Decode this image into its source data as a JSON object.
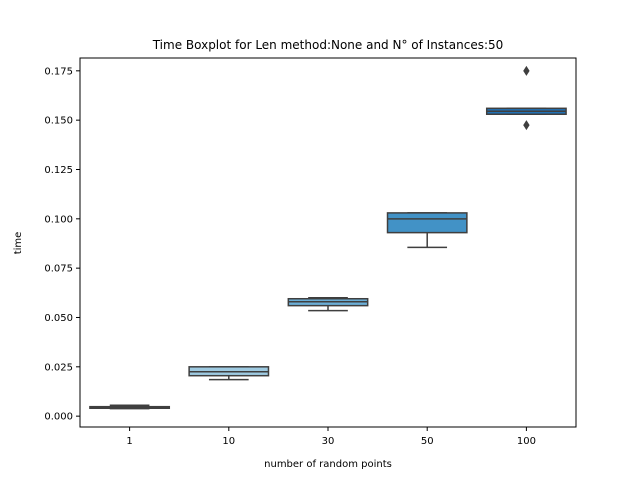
{
  "chart_data": {
    "type": "boxplot",
    "title": "Time Boxplot for Len method:None and N° of Instances:50",
    "xlabel": "number of random points",
    "ylabel": "time",
    "ylim": [
      -0.0055,
      0.1815
    ],
    "yticks": [
      "0.000",
      "0.025",
      "0.050",
      "0.075",
      "0.100",
      "0.125",
      "0.150",
      "0.175"
    ],
    "ytick_values": [
      0.0,
      0.025,
      0.05,
      0.075,
      0.1,
      0.125,
      0.15,
      0.175
    ],
    "categories": [
      "1",
      "10",
      "30",
      "50",
      "100"
    ],
    "boxes": [
      {
        "category": "1",
        "whisker_low": 0.0038,
        "q1": 0.004,
        "median": 0.0045,
        "q3": 0.0048,
        "whisker_high": 0.0055,
        "outliers": [],
        "color": "#c6dbef"
      },
      {
        "category": "10",
        "whisker_low": 0.0185,
        "q1": 0.0205,
        "median": 0.0225,
        "q3": 0.025,
        "whisker_high": 0.025,
        "outliers": [],
        "color": "#9ecae1"
      },
      {
        "category": "30",
        "whisker_low": 0.0535,
        "q1": 0.056,
        "median": 0.058,
        "q3": 0.0595,
        "whisker_high": 0.06,
        "outliers": [],
        "color": "#6baed6"
      },
      {
        "category": "50",
        "whisker_low": 0.0855,
        "q1": 0.093,
        "median": 0.1,
        "q3": 0.103,
        "whisker_high": 0.103,
        "outliers": [],
        "color": "#4292c6"
      },
      {
        "category": "100",
        "whisker_low": 0.153,
        "q1": 0.153,
        "median": 0.1545,
        "q3": 0.156,
        "whisker_high": 0.156,
        "outliers": [
          0.175,
          0.1475
        ],
        "color": "#2171b5"
      }
    ],
    "grid": false,
    "legend": "none"
  }
}
